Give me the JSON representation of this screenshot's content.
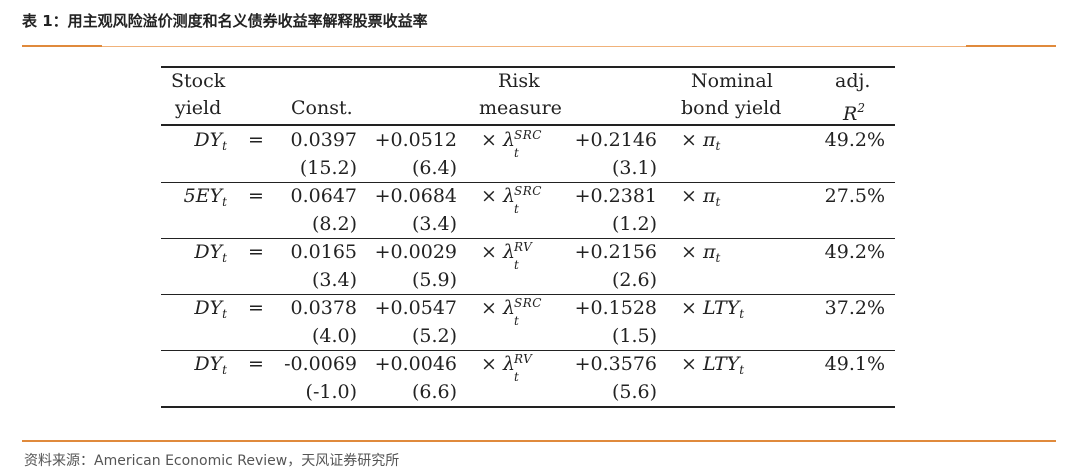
{
  "title": "表 1：用主观风险溢价测度和名义债券收益率解释股票收益率",
  "source": "资料来源：American Economic Review，天风证券研究所",
  "table": {
    "headers": {
      "stock_yield": [
        "Stock",
        "yield"
      ],
      "const": "Const.",
      "risk_measure": [
        "Risk",
        "measure"
      ],
      "nominal_bond_yield": [
        "Nominal",
        "bond yield"
      ],
      "adj_r2": [
        "adj.",
        "R",
        "2"
      ]
    },
    "rows": [
      {
        "dep": "DY",
        "dep_sub": "t",
        "eq": "=",
        "const": "0.0397",
        "const_t": "(15.2)",
        "risk_coef": "+0.0512",
        "risk_t": "(6.4)",
        "times1": "×",
        "lambda": "λ",
        "lambda_sup": "SRC",
        "lambda_sub": "t",
        "bond_coef": "+0.2146",
        "bond_t": "(3.1)",
        "times2": "×",
        "bond_var": "π",
        "bond_sub": "t",
        "r2": "49.2%"
      },
      {
        "dep": "5EY",
        "dep_sub": "t",
        "eq": "=",
        "const": "0.0647",
        "const_t": "(8.2)",
        "risk_coef": "+0.0684",
        "risk_t": "(3.4)",
        "times1": "×",
        "lambda": "λ",
        "lambda_sup": "SRC",
        "lambda_sub": "t",
        "bond_coef": "+0.2381",
        "bond_t": "(1.2)",
        "times2": "×",
        "bond_var": "π",
        "bond_sub": "t",
        "r2": "27.5%"
      },
      {
        "dep": "DY",
        "dep_sub": "t",
        "eq": "=",
        "const": "0.0165",
        "const_t": "(3.4)",
        "risk_coef": "+0.0029",
        "risk_t": "(5.9)",
        "times1": "×",
        "lambda": "λ",
        "lambda_sup": "RV",
        "lambda_sub": "t",
        "bond_coef": "+0.2156",
        "bond_t": "(2.6)",
        "times2": "×",
        "bond_var": "π",
        "bond_sub": "t",
        "r2": "49.2%"
      },
      {
        "dep": "DY",
        "dep_sub": "t",
        "eq": "=",
        "const": "0.0378",
        "const_t": "(4.0)",
        "risk_coef": "+0.0547",
        "risk_t": "(5.2)",
        "times1": "×",
        "lambda": "λ",
        "lambda_sup": "SRC",
        "lambda_sub": "t",
        "bond_coef": "+0.1528",
        "bond_t": "(1.5)",
        "times2": "×",
        "bond_var": "LTY",
        "bond_sub": "t",
        "r2": "37.2%"
      },
      {
        "dep": "DY",
        "dep_sub": "t",
        "eq": "=",
        "const": "-0.0069",
        "const_t": "(-1.0)",
        "risk_coef": "+0.0046",
        "risk_t": "(6.6)",
        "times1": "×",
        "lambda": "λ",
        "lambda_sup": "RV",
        "lambda_sub": "t",
        "bond_coef": "+0.3576",
        "bond_t": "(5.6)",
        "times2": "×",
        "bond_var": "LTY",
        "bond_sub": "t",
        "r2": "49.1%"
      }
    ]
  }
}
